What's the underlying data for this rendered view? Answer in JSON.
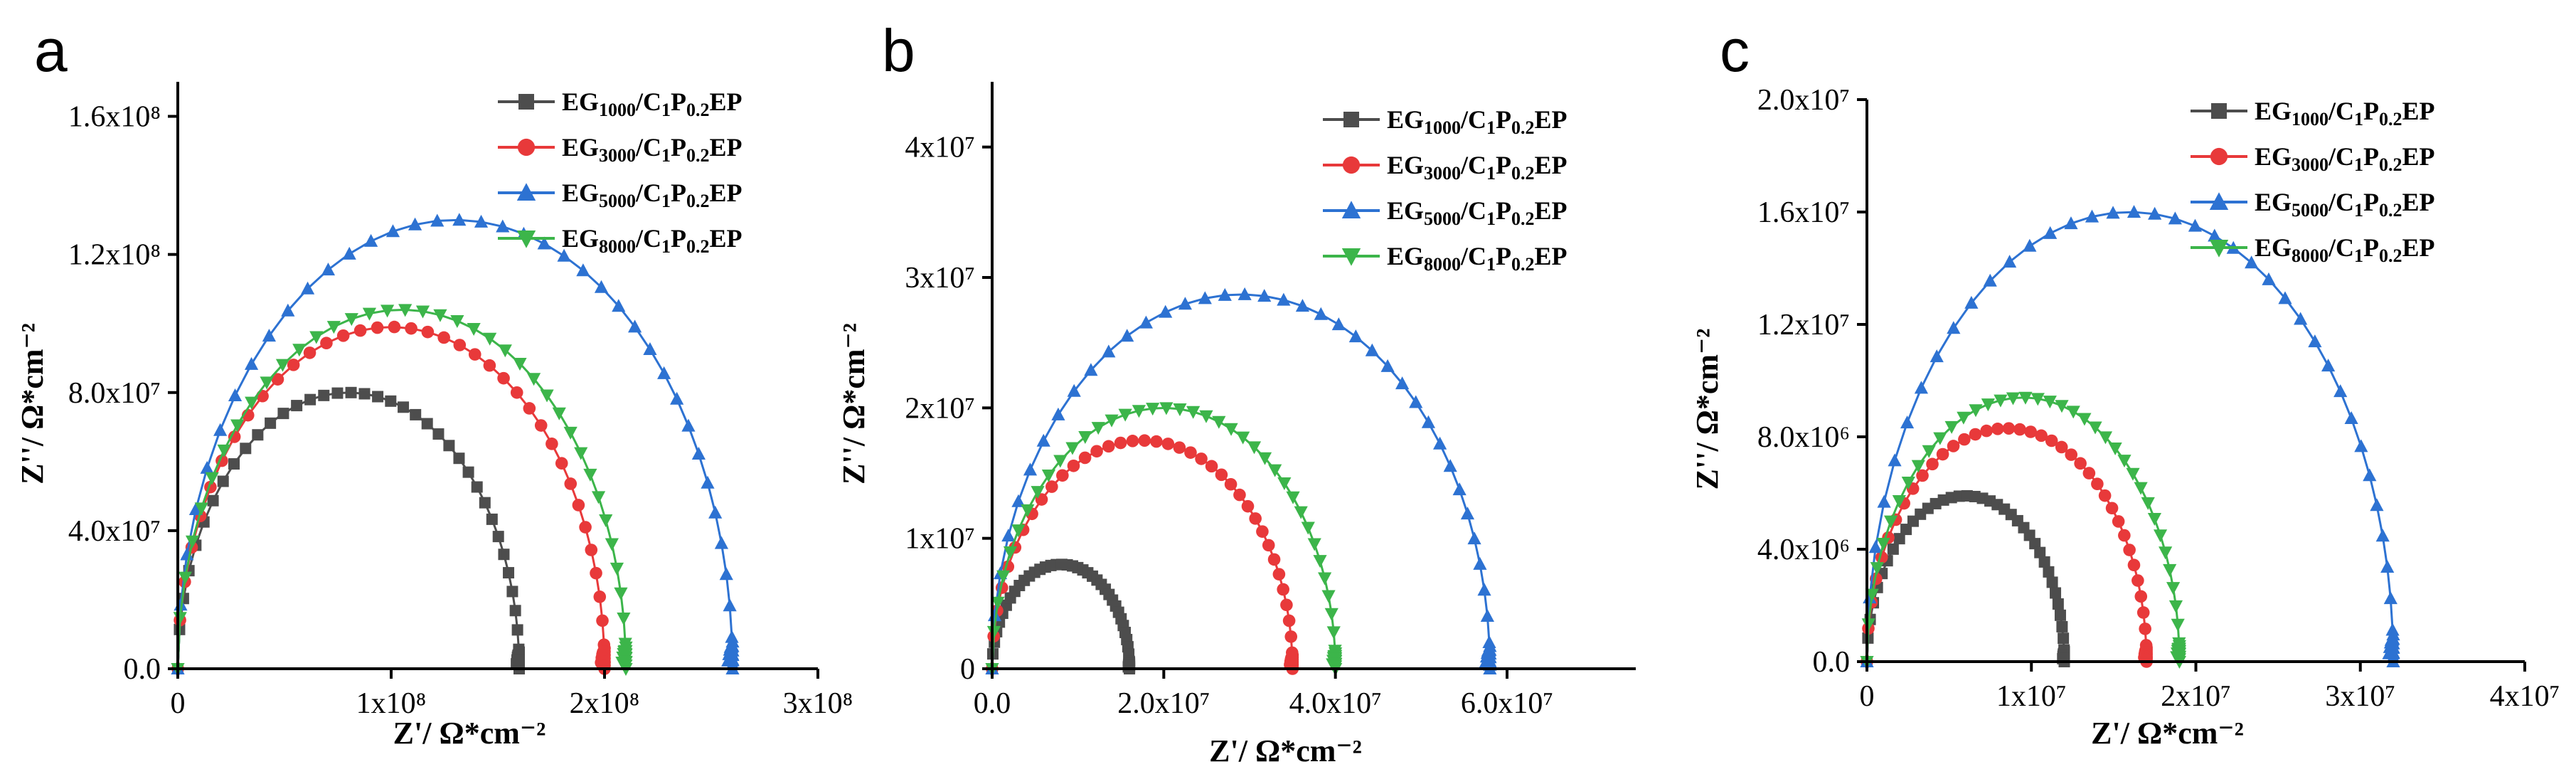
{
  "colors": {
    "s1000": "#4d4d4d",
    "s3000": "#e8393a",
    "s5000": "#2d72d2",
    "s8000": "#3cb54a"
  },
  "legend_template": {
    "prefix": "EG",
    "mid": "/C",
    "c_sub": "1",
    "p": "P",
    "p_sub": "0.2",
    "suffix": "EP"
  },
  "chart_data": [
    {
      "type": "scatter",
      "panel": "a",
      "xlabel": "Z'/ Ω*cm⁻²",
      "ylabel": "Z''/ Ω*cm⁻²",
      "xlim": [
        0,
        300000000
      ],
      "ylim": [
        0,
        170000000
      ],
      "xticks": [
        0,
        100000000,
        200000000,
        300000000
      ],
      "xtick_labels": [
        "0",
        "1x10⁸",
        "2x10⁸",
        "3x10⁸"
      ],
      "yticks": [
        0,
        40000000,
        80000000,
        120000000,
        160000000
      ],
      "ytick_labels": [
        "0.0",
        "4.0x10⁷",
        "8.0x10⁷",
        "1.2x10⁸",
        "1.6x10⁸"
      ],
      "series": [
        {
          "name": "EG1000/C1P0.2EP",
          "sub": "1000",
          "color_key": "s1000",
          "marker": "square",
          "diameter": 160000000,
          "peak": 80000000
        },
        {
          "name": "EG3000/C1P0.2EP",
          "sub": "3000",
          "color_key": "s3000",
          "marker": "circle",
          "diameter": 200000000,
          "peak": 99000000
        },
        {
          "name": "EG5000/C1P0.2EP",
          "sub": "5000",
          "color_key": "s5000",
          "marker": "triangle-up",
          "diameter": 260000000,
          "peak": 130000000
        },
        {
          "name": "EG8000/C1P0.2EP",
          "sub": "8000",
          "color_key": "s8000",
          "marker": "triangle-down",
          "diameter": 210000000,
          "peak": 104000000
        }
      ]
    },
    {
      "type": "scatter",
      "panel": "b",
      "xlabel": "Z'/  Ω*cm⁻²",
      "ylabel": "Z''/ Ω*cm⁻²",
      "xlim": [
        0,
        75000000
      ],
      "ylim": [
        0,
        45000000
      ],
      "xticks": [
        0,
        20000000,
        40000000,
        60000000
      ],
      "xtick_labels": [
        "0.0",
        "2.0x10⁷",
        "4.0x10⁷",
        "6.0x10⁷"
      ],
      "yticks": [
        0,
        10000000,
        20000000,
        30000000,
        40000000
      ],
      "ytick_labels": [
        "0",
        "1x10⁷",
        "2x10⁷",
        "3x10⁷",
        "4x10⁷"
      ],
      "series": [
        {
          "name": "EG1000/C1P0.2EP",
          "sub": "1000",
          "color_key": "s1000",
          "marker": "square",
          "diameter": 16000000,
          "peak": 8000000
        },
        {
          "name": "EG3000/C1P0.2EP",
          "sub": "3000",
          "color_key": "s3000",
          "marker": "circle",
          "diameter": 35000000,
          "peak": 17500000
        },
        {
          "name": "EG5000/C1P0.2EP",
          "sub": "5000",
          "color_key": "s5000",
          "marker": "triangle-up",
          "diameter": 58000000,
          "peak": 28700000
        },
        {
          "name": "EG8000/C1P0.2EP",
          "sub": "8000",
          "color_key": "s8000",
          "marker": "triangle-down",
          "diameter": 40000000,
          "peak": 20000000
        }
      ]
    },
    {
      "type": "scatter",
      "panel": "c",
      "xlabel": "Z'/ Ω*cm⁻²",
      "ylabel": "Z''/ Ω*cm⁻²",
      "xlim": [
        0,
        40000000
      ],
      "ylim": [
        0,
        20000000
      ],
      "xticks": [
        0,
        10000000,
        20000000,
        30000000,
        40000000
      ],
      "xtick_labels": [
        "0",
        "1x10⁷",
        "2x10⁷",
        "3x10⁷",
        "4x10⁷"
      ],
      "yticks": [
        0,
        4000000,
        8000000,
        12000000,
        16000000,
        20000000
      ],
      "ytick_labels": [
        "0.0",
        "4.0x10⁶",
        "8.0x10⁶",
        "1.2x10⁷",
        "1.6x10⁷",
        "2.0x10⁷"
      ],
      "series": [
        {
          "name": "EG1000/C1P0.2EP",
          "sub": "1000",
          "color_key": "s1000",
          "marker": "square",
          "diameter": 12000000,
          "peak": 5900000
        },
        {
          "name": "EG3000/C1P0.2EP",
          "sub": "3000",
          "color_key": "s3000",
          "marker": "circle",
          "diameter": 17000000,
          "peak": 8300000
        },
        {
          "name": "EG5000/C1P0.2EP",
          "sub": "5000",
          "color_key": "s5000",
          "marker": "triangle-up",
          "diameter": 32000000,
          "peak": 16000000
        },
        {
          "name": "EG8000/C1P0.2EP",
          "sub": "8000",
          "color_key": "s8000",
          "marker": "triangle-down",
          "diameter": 19000000,
          "peak": 9400000
        }
      ]
    }
  ]
}
